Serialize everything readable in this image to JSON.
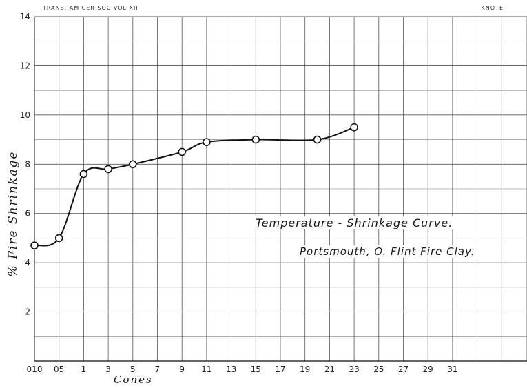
{
  "header": {
    "left_text": "TRANS. AM CER SOC VOL XII",
    "right_text": "KNOTE"
  },
  "chart_data": {
    "type": "line",
    "title": "Temperature - Shrinkage Curve.",
    "subtitle": "Portsmouth, O. Flint Fire Clay.",
    "xlabel": "Cones",
    "ylabel": "% Fire Shrinkage",
    "categories": [
      "010",
      "05",
      "1",
      "3",
      "5",
      "7",
      "9",
      "11",
      "13",
      "15",
      "17",
      "19",
      "21",
      "23",
      "25",
      "27",
      "29",
      "31"
    ],
    "ylim": [
      0,
      14
    ],
    "yticks": [
      2,
      4,
      6,
      8,
      10,
      12,
      14
    ],
    "grid": true,
    "series": [
      {
        "x": [
          "010",
          "05",
          "1",
          "3",
          "5",
          "9",
          "11",
          "15",
          "20",
          "23"
        ],
        "values": [
          4.7,
          5.0,
          7.6,
          7.8,
          8.0,
          8.5,
          8.9,
          9.0,
          9.0,
          9.5
        ]
      }
    ]
  }
}
